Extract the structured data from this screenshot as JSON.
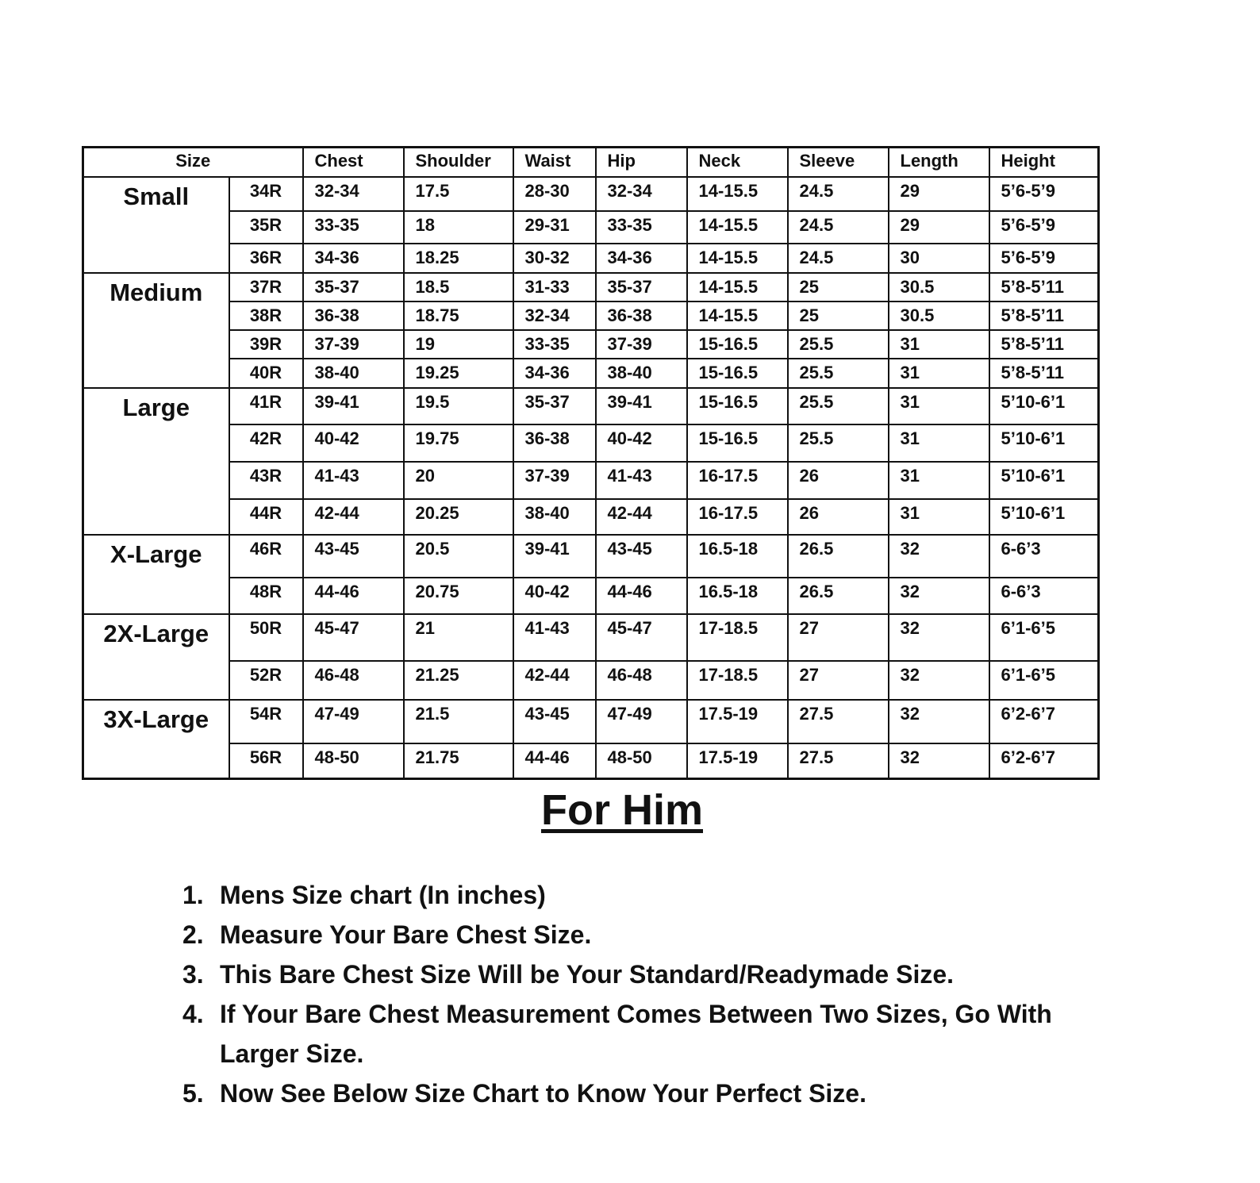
{
  "table": {
    "headers": [
      "Size",
      "Chest",
      "Shoulder",
      "Waist",
      "Hip",
      "Neck",
      "Sleeve",
      "Length",
      "Height"
    ],
    "groups": [
      {
        "label": "Small",
        "rows": [
          [
            "34R",
            "32-34",
            "17.5",
            "28-30",
            "32-34",
            "14-15.5",
            "24.5",
            "29",
            "5’6-5’9"
          ],
          [
            "35R",
            "33-35",
            "18",
            "29-31",
            "33-35",
            "14-15.5",
            "24.5",
            "29",
            "5’6-5’9"
          ],
          [
            "36R",
            "34-36",
            "18.25",
            "30-32",
            "34-36",
            "14-15.5",
            "24.5",
            "30",
            "5’6-5’9"
          ]
        ]
      },
      {
        "label": "Medium",
        "rows": [
          [
            "37R",
            "35-37",
            "18.5",
            "31-33",
            "35-37",
            "14-15.5",
            "25",
            "30.5",
            "5’8-5’11"
          ],
          [
            "38R",
            "36-38",
            "18.75",
            "32-34",
            "36-38",
            "14-15.5",
            "25",
            "30.5",
            "5’8-5’11"
          ],
          [
            "39R",
            "37-39",
            "19",
            "33-35",
            "37-39",
            "15-16.5",
            "25.5",
            "31",
            "5’8-5’11"
          ],
          [
            "40R",
            "38-40",
            "19.25",
            "34-36",
            "38-40",
            "15-16.5",
            "25.5",
            "31",
            "5’8-5’11"
          ]
        ]
      },
      {
        "label": "Large",
        "rows": [
          [
            "41R",
            "39-41",
            "19.5",
            "35-37",
            "39-41",
            "15-16.5",
            "25.5",
            "31",
            "5’10-6’1"
          ],
          [
            "42R",
            "40-42",
            "19.75",
            "36-38",
            "40-42",
            "15-16.5",
            "25.5",
            "31",
            "5’10-6’1"
          ],
          [
            "43R",
            "41-43",
            "20",
            "37-39",
            "41-43",
            "16-17.5",
            "26",
            "31",
            "5’10-6’1"
          ],
          [
            "44R",
            "42-44",
            "20.25",
            "38-40",
            "42-44",
            "16-17.5",
            "26",
            "31",
            "5’10-6’1"
          ]
        ]
      },
      {
        "label": "X-Large",
        "rows": [
          [
            "46R",
            "43-45",
            "20.5",
            "39-41",
            "43-45",
            "16.5-18",
            "26.5",
            "32",
            "6-6’3"
          ],
          [
            "48R",
            "44-46",
            "20.75",
            "40-42",
            "44-46",
            "16.5-18",
            "26.5",
            "32",
            "6-6’3"
          ]
        ]
      },
      {
        "label": "2X-Large",
        "rows": [
          [
            "50R",
            "45-47",
            "21",
            "41-43",
            "45-47",
            "17-18.5",
            "27",
            "32",
            "6’1-6’5"
          ],
          [
            "52R",
            "46-48",
            "21.25",
            "42-44",
            "46-48",
            "17-18.5",
            "27",
            "32",
            "6’1-6’5"
          ]
        ]
      },
      {
        "label": "3X-Large",
        "rows": [
          [
            "54R",
            "47-49",
            "21.5",
            "43-45",
            "47-49",
            "17.5-19",
            "27.5",
            "32",
            "6’2-6’7"
          ],
          [
            "56R",
            "48-50",
            "21.75",
            "44-46",
            "48-50",
            "17.5-19",
            "27.5",
            "32",
            "6’2-6’7"
          ]
        ]
      }
    ]
  },
  "title": "For Him",
  "notes": [
    {
      "num": "1.",
      "text": "Mens Size chart (In inches)"
    },
    {
      "num": "2.",
      "text": "Measure Your Bare Chest Size."
    },
    {
      "num": "3.",
      "text": "This Bare Chest Size Will be Your Standard/Readymade Size."
    },
    {
      "num": "4.",
      "text": "If Your Bare Chest Measurement Comes Between Two Sizes, Go With Larger Size."
    },
    {
      "num": "5.",
      "text": "Now See Below Size Chart to Know Your Perfect Size."
    }
  ]
}
